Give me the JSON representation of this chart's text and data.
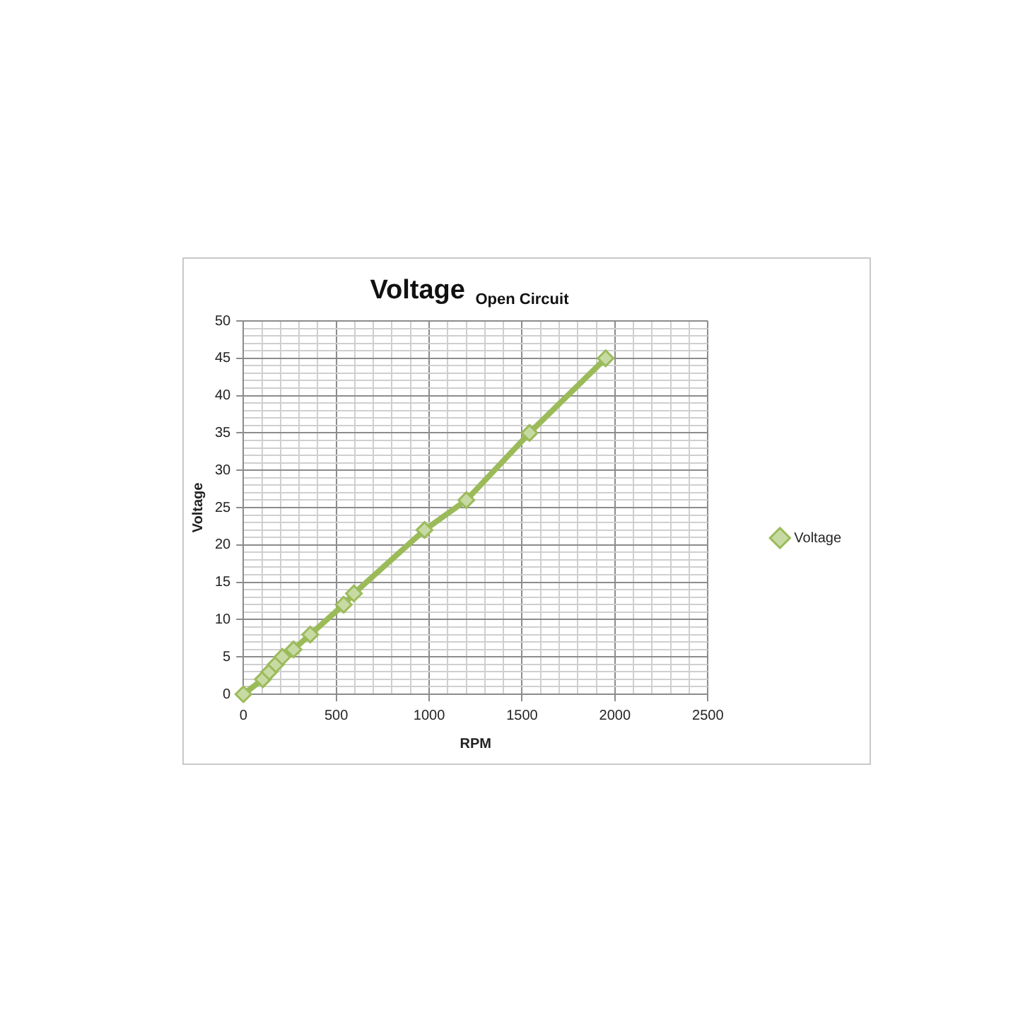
{
  "chart_data": {
    "type": "line",
    "title": "Voltage $_{Open Circuit}$",
    "xlabel": "RPM",
    "ylabel": "Voltage",
    "x": [
      0,
      105,
      140,
      175,
      210,
      270,
      360,
      540,
      595,
      975,
      1200,
      1540,
      1950
    ],
    "series": [
      {
        "name": "Voltage",
        "color": "#9bbb59",
        "values": [
          0,
          2,
          3,
          4,
          5,
          6,
          8,
          12,
          13.5,
          22,
          26,
          35,
          45
        ]
      }
    ],
    "xlim": [
      0,
      2500
    ],
    "ylim": [
      0,
      50
    ],
    "xticks": [
      0,
      {
        "value": 100,
        "label": null
      },
      {
        "value": 200,
        "label": null
      },
      {
        "value": 300,
        "label": null
      },
      {
        "value": 400,
        "label": null
      },
      500,
      {
        "value": 600,
        "label": null
      },
      {
        "value": 700,
        "label": null
      },
      {
        "value": 800,
        "label": null
      },
      {
        "value": 900,
        "label": null
      },
      1000,
      {
        "value": 1100,
        "label": null
      },
      {
        "value": 1200,
        "label": null
      },
      {
        "value": 1300,
        "label": null
      },
      {
        "value": 1400,
        "label": null
      },
      1500,
      {
        "value": 1600,
        "label": null
      },
      {
        "value": 1700,
        "label": null
      },
      {
        "value": 1800,
        "label": null
      },
      {
        "value": 1900,
        "label": null
      },
      2000,
      {
        "value": 2100,
        "label": null
      },
      {
        "value": 2200,
        "label": null
      },
      {
        "value": 2300,
        "label": null
      },
      {
        "value": 2400,
        "label": null
      },
      2500
    ],
    "yticks": [
      0,
      {
        "value": 1,
        "label": null
      },
      {
        "value": 2,
        "label": null
      },
      {
        "value": 3,
        "label": null
      },
      {
        "value": 4,
        "label": null
      },
      5,
      {
        "value": 6,
        "label": null
      },
      {
        "value": 7,
        "label": null
      },
      {
        "value": 8,
        "label": null
      },
      {
        "value": 9,
        "label": null
      },
      10,
      {
        "value": 11,
        "label": null
      },
      {
        "value": 12,
        "label": null
      },
      {
        "value": 13,
        "label": null
      },
      {
        "value": 14,
        "label": null
      },
      15,
      {
        "value": 16,
        "label": null
      },
      {
        "value": 17,
        "label": null
      },
      {
        "value": 18,
        "label": null
      },
      {
        "value": 19,
        "label": null
      },
      20,
      {
        "value": 21,
        "label": null
      },
      {
        "value": 22,
        "label": null
      },
      {
        "value": 23,
        "label": null
      },
      {
        "value": 24,
        "label": null
      },
      25,
      {
        "value": 26,
        "label": null
      },
      {
        "value": 27,
        "label": null
      },
      {
        "value": 28,
        "label": null
      },
      {
        "value": 29,
        "label": null
      },
      30,
      {
        "value": 31,
        "label": null
      },
      {
        "value": 32,
        "label": null
      },
      {
        "value": 33,
        "label": null
      },
      {
        "value": 34,
        "label": null
      },
      35,
      {
        "value": 36,
        "label": null
      },
      {
        "value": 37,
        "label": null
      },
      {
        "value": 38,
        "label": null
      },
      {
        "value": 39,
        "label": null
      },
      40,
      {
        "value": 41,
        "label": null
      },
      {
        "value": 42,
        "label": null
      },
      {
        "value": 43,
        "label": null
      },
      {
        "value": 44,
        "label": null
      },
      45,
      {
        "value": 46,
        "label": null
      },
      {
        "value": 47,
        "label": null
      },
      {
        "value": 48,
        "label": null
      },
      {
        "value": 49,
        "label": null
      },
      50
    ],
    "grid": true,
    "legend": "right",
    "marker": "diamond"
  }
}
